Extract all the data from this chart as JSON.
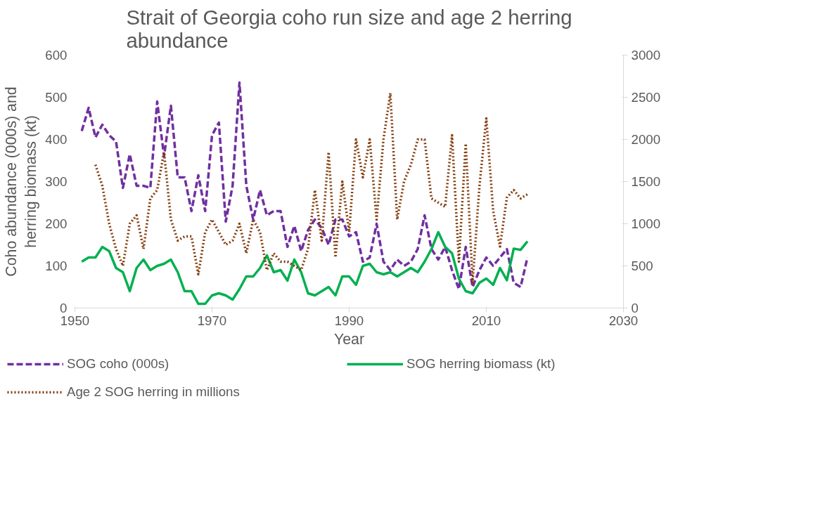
{
  "chart_data": {
    "type": "line",
    "title": "Strait of Georgia coho run size and age 2 herring abundance",
    "xlabel": "Year",
    "ylabel": "Coho abundance (000s) and herring biomass (kt)",
    "x": [
      1951,
      1952,
      1953,
      1954,
      1955,
      1956,
      1957,
      1958,
      1959,
      1960,
      1961,
      1962,
      1963,
      1964,
      1965,
      1966,
      1967,
      1968,
      1969,
      1970,
      1971,
      1972,
      1973,
      1974,
      1975,
      1976,
      1977,
      1978,
      1979,
      1980,
      1981,
      1982,
      1983,
      1984,
      1985,
      1986,
      1987,
      1988,
      1989,
      1990,
      1991,
      1992,
      1993,
      1994,
      1995,
      1996,
      1997,
      1998,
      1999,
      2000,
      2001,
      2002,
      2003,
      2004,
      2005,
      2006,
      2007,
      2008,
      2009,
      2010,
      2011,
      2012,
      2013,
      2014,
      2015,
      2016
    ],
    "xlim": [
      1950,
      2030
    ],
    "xticks": [
      1950,
      1970,
      1990,
      2010,
      2030
    ],
    "ylim": [
      0,
      600
    ],
    "yticks": [
      0,
      100,
      200,
      300,
      400,
      500,
      600
    ],
    "y2lim": [
      0,
      3000
    ],
    "y2ticks": [
      0,
      500,
      1000,
      1500,
      2000,
      2500,
      3000
    ],
    "grid": false,
    "legend": "bottom",
    "series": [
      {
        "name": "SOG coho (000s)",
        "color": "#7030a0",
        "line_style": "dashed",
        "values": [
          420,
          475,
          405,
          435,
          410,
          395,
          285,
          365,
          290,
          290,
          285,
          490,
          360,
          480,
          310,
          310,
          230,
          315,
          230,
          410,
          440,
          205,
          290,
          535,
          290,
          210,
          280,
          220,
          230,
          230,
          145,
          195,
          135,
          185,
          210,
          190,
          150,
          210,
          210,
          170,
          180,
          110,
          120,
          200,
          110,
          90,
          115,
          100,
          110,
          140,
          220,
          140,
          115,
          145,
          90,
          45,
          145,
          50,
          90,
          120,
          100,
          120,
          140,
          60,
          50,
          120
        ]
      },
      {
        "name": "SOG herring biomass (kt)",
        "color": "#00b050",
        "line_style": "solid",
        "values": [
          110,
          120,
          120,
          145,
          135,
          95,
          85,
          40,
          95,
          115,
          90,
          100,
          105,
          115,
          85,
          40,
          40,
          10,
          10,
          30,
          35,
          30,
          20,
          45,
          75,
          75,
          95,
          125,
          85,
          90,
          65,
          115,
          85,
          35,
          30,
          40,
          50,
          30,
          75,
          75,
          55,
          100,
          105,
          85,
          80,
          85,
          75,
          85,
          95,
          85,
          110,
          140,
          180,
          145,
          130,
          70,
          40,
          35,
          60,
          70,
          55,
          95,
          66,
          141,
          138,
          158
        ]
      },
      {
        "name": "Age 2 SOG herring in millions",
        "color": "#843c0c",
        "line_style": "dotted",
        "axis": "y2",
        "values": [
          null,
          null,
          1700,
          1450,
          1000,
          700,
          500,
          1000,
          1100,
          700,
          1300,
          1400,
          1850,
          1050,
          800,
          850,
          850,
          400,
          900,
          1050,
          900,
          750,
          800,
          1000,
          650,
          1050,
          900,
          450,
          650,
          550,
          550,
          500,
          450,
          700,
          1400,
          800,
          1850,
          600,
          1500,
          900,
          2000,
          1550,
          2000,
          1050,
          2000,
          2550,
          1050,
          1500,
          1700,
          2000,
          2000,
          1300,
          1250,
          1200,
          2050,
          550,
          1950,
          300,
          1450,
          2250,
          1150,
          730,
          1310,
          1400,
          1300,
          1350
        ]
      }
    ]
  }
}
